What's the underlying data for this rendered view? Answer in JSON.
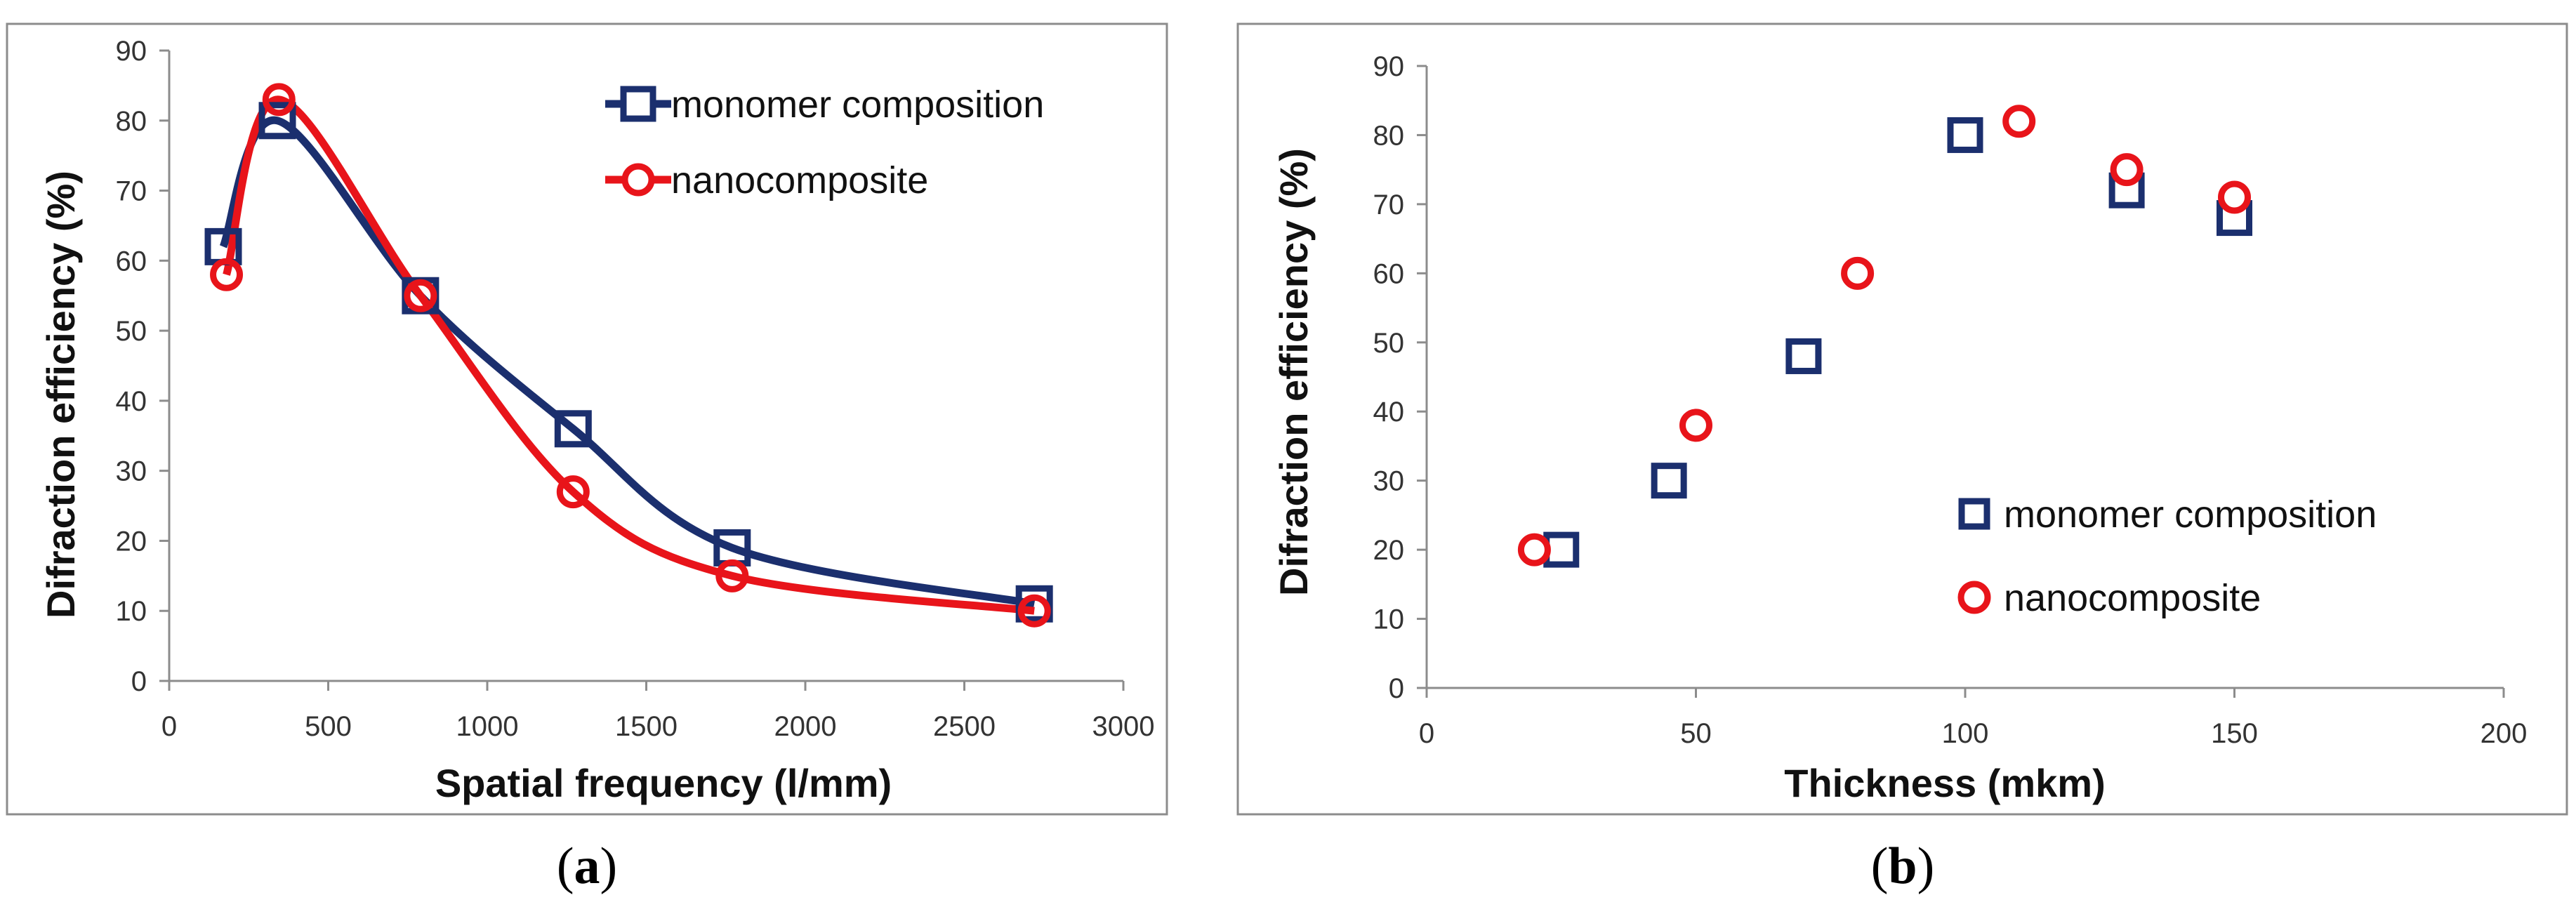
{
  "chart_data": [
    {
      "type": "line",
      "title": "",
      "caption_open": "(",
      "caption_letter": "a",
      "caption_close": ")",
      "xlabel": "Spatial frequency (l/mm)",
      "ylabel": "Difraction efficiency  (%)",
      "xlim": [
        0,
        3000
      ],
      "ylim": [
        0,
        90
      ],
      "xticks": [
        "0",
        "500",
        "1000",
        "1500",
        "2000",
        "2500",
        "3000"
      ],
      "yticks": [
        "0",
        "10",
        "20",
        "30",
        "40",
        "50",
        "60",
        "70",
        "80",
        "90"
      ],
      "legend_position": "top-right",
      "series": [
        {
          "name": "monomer composition",
          "marker": "square",
          "color": "#1b2f6e",
          "x": [
            170,
            340,
            790,
            1270,
            1770,
            2720
          ],
          "y": [
            62,
            80,
            55,
            36,
            19,
            11
          ]
        },
        {
          "name": "nanocomposite",
          "marker": "circle",
          "color": "#e8141a",
          "x": [
            180,
            345,
            790,
            1270,
            1770,
            2720
          ],
          "y": [
            58,
            83,
            55,
            27,
            15,
            10
          ]
        }
      ]
    },
    {
      "type": "scatter",
      "title": "",
      "caption_open": "(",
      "caption_letter": "b",
      "caption_close": ")",
      "xlabel": "Thickness (mkm)",
      "ylabel": "Difraction efficiency (%)",
      "xlim": [
        0,
        200
      ],
      "ylim": [
        0,
        90
      ],
      "xticks": [
        "0",
        "50",
        "100",
        "150",
        "200"
      ],
      "yticks": [
        "0",
        "10",
        "20",
        "30",
        "40",
        "50",
        "60",
        "70",
        "80",
        "90"
      ],
      "legend_position": "bottom-right",
      "series": [
        {
          "name": "monomer composition",
          "marker": "square",
          "color": "#1b2f6e",
          "x": [
            25,
            45,
            70,
            100,
            130,
            150
          ],
          "y": [
            20,
            30,
            48,
            80,
            72,
            68
          ]
        },
        {
          "name": "nanocomposite",
          "marker": "circle",
          "color": "#e8141a",
          "x": [
            20,
            50,
            80,
            110,
            130,
            150
          ],
          "y": [
            20,
            38,
            60,
            82,
            75,
            71
          ]
        }
      ]
    }
  ]
}
